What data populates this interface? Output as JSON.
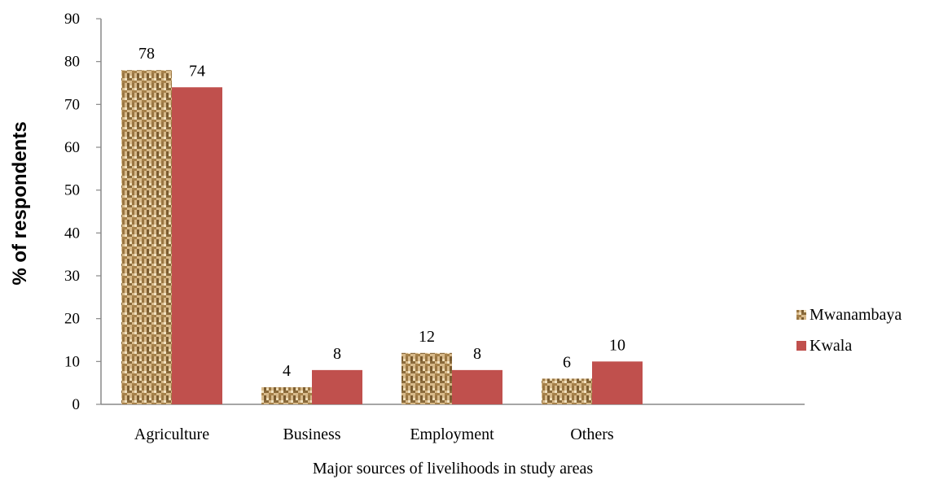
{
  "chart_data": {
    "type": "bar",
    "categories": [
      "Agriculture",
      "Business",
      "Employment",
      "Others"
    ],
    "series": [
      {
        "name": "Mwanambaya",
        "values": [
          78,
          4,
          12,
          6
        ],
        "color": "#c9a36a",
        "pattern": "woven-burlap"
      },
      {
        "name": "Kwala",
        "values": [
          74,
          8,
          8,
          10
        ],
        "color": "#c0504d"
      }
    ],
    "xlabel": "Major sources of livelihoods in study areas",
    "ylabel": "% of respondents",
    "ylim": [
      0,
      90
    ],
    "yticks": [
      0,
      10,
      20,
      30,
      40,
      50,
      60,
      70,
      80,
      90
    ],
    "grid": false,
    "data_labels": true,
    "legend_position": "right"
  }
}
